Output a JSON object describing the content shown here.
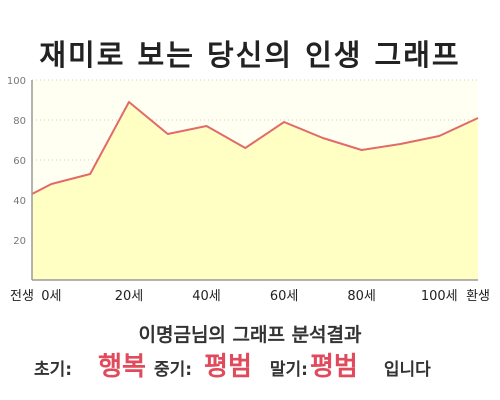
{
  "title": "재미로 보는 당신의 인생 그래프",
  "chart_data": {
    "type": "area",
    "x": [
      -5,
      0,
      10,
      20,
      30,
      40,
      50,
      60,
      70,
      80,
      90,
      100,
      110
    ],
    "y": [
      43,
      48,
      53,
      89,
      73,
      77,
      66,
      79,
      71,
      65,
      68,
      72,
      81
    ],
    "ylim": [
      0,
      100
    ],
    "y_ticks": [
      20,
      40,
      60,
      80,
      100
    ],
    "x_ticks": [
      {
        "x": -5,
        "label": "전생"
      },
      {
        "x": 0,
        "label": "0세"
      },
      {
        "x": 20,
        "label": "20세"
      },
      {
        "x": 40,
        "label": "40세"
      },
      {
        "x": 60,
        "label": "60세"
      },
      {
        "x": 80,
        "label": "80세"
      },
      {
        "x": 100,
        "label": "100세"
      },
      {
        "x": 110,
        "label": "환생"
      }
    ],
    "colors": {
      "fill": "#ffffc4",
      "line": "#e26a6a",
      "plot_bg": "#fffff2",
      "axis": "#9a9a9a",
      "grid": "#cccccc"
    },
    "grid": true
  },
  "subtitle": "이명금님의 그래프 분석결과",
  "result": {
    "early_label": "초기:",
    "early_value": "행복",
    "mid_label": "중기:",
    "mid_value": "평범",
    "late_label": "말기:",
    "late_value": "평범",
    "suffix": "입니다"
  }
}
